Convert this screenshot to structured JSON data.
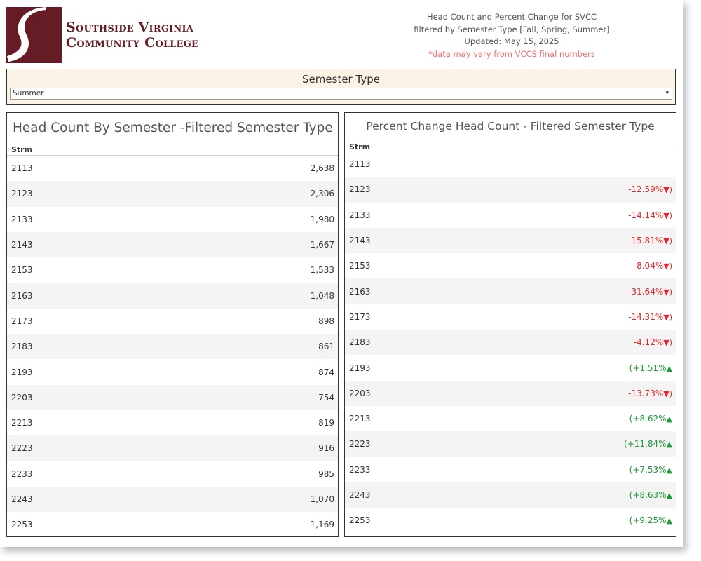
{
  "header": {
    "logo_line1": "Southside Virginia",
    "logo_line2": "Community College",
    "info_line1": "Head Count and Percent Change for SVCC",
    "info_line2": "filtered by Semester Type [Fall, Spring, Summer]",
    "updated": "Updated: May 15, 2025",
    "note": "*data may vary from VCCS final numbers"
  },
  "colors": {
    "brand": "#651c24",
    "negative": "#e8242a",
    "positive": "#1e9a3a",
    "filter_bg": "#fbf3e5"
  },
  "filter": {
    "title": "Semester Type",
    "selected": "Summer",
    "caret": "▾"
  },
  "headcount": {
    "title": "Head Count By Semester -Filtered Semester Type",
    "column_header": "Strm",
    "rows": [
      {
        "strm": "2113",
        "value": "2,638"
      },
      {
        "strm": "2123",
        "value": "2,306"
      },
      {
        "strm": "2133",
        "value": "1,980"
      },
      {
        "strm": "2143",
        "value": "1,667"
      },
      {
        "strm": "2153",
        "value": "1,533"
      },
      {
        "strm": "2163",
        "value": "1,048"
      },
      {
        "strm": "2173",
        "value": "898"
      },
      {
        "strm": "2183",
        "value": "861"
      },
      {
        "strm": "2193",
        "value": "874"
      },
      {
        "strm": "2203",
        "value": "754"
      },
      {
        "strm": "2213",
        "value": "819"
      },
      {
        "strm": "2223",
        "value": "916"
      },
      {
        "strm": "2233",
        "value": "985"
      },
      {
        "strm": "2243",
        "value": "1,070"
      },
      {
        "strm": "2253",
        "value": "1,169"
      }
    ]
  },
  "pctchange": {
    "title": "Percent Change Head Count - Filtered Semester Type",
    "column_header": "Strm",
    "rows": [
      {
        "strm": "2113",
        "value": "",
        "arrow": "",
        "dir": ""
      },
      {
        "strm": "2123",
        "value": "-12.59%",
        "arrow": "▼)",
        "dir": "neg"
      },
      {
        "strm": "2133",
        "value": "-14.14%",
        "arrow": "▼)",
        "dir": "neg"
      },
      {
        "strm": "2143",
        "value": "-15.81%",
        "arrow": "▼)",
        "dir": "neg"
      },
      {
        "strm": "2153",
        "value": "-8.04%",
        "arrow": "▼)",
        "dir": "neg"
      },
      {
        "strm": "2163",
        "value": "-31.64%",
        "arrow": "▼)",
        "dir": "neg"
      },
      {
        "strm": "2173",
        "value": "-14.31%",
        "arrow": "▼)",
        "dir": "neg"
      },
      {
        "strm": "2183",
        "value": "-4.12%",
        "arrow": "▼)",
        "dir": "neg"
      },
      {
        "strm": "2193",
        "value": "(+1.51%",
        "arrow": "▲",
        "dir": "pos"
      },
      {
        "strm": "2203",
        "value": "-13.73%",
        "arrow": "▼)",
        "dir": "neg"
      },
      {
        "strm": "2213",
        "value": "(+8.62%",
        "arrow": "▲",
        "dir": "pos"
      },
      {
        "strm": "2223",
        "value": "(+11.84%",
        "arrow": "▲",
        "dir": "pos"
      },
      {
        "strm": "2233",
        "value": "(+7.53%",
        "arrow": "▲",
        "dir": "pos"
      },
      {
        "strm": "2243",
        "value": "(+8.63%",
        "arrow": "▲",
        "dir": "pos"
      },
      {
        "strm": "2253",
        "value": "(+9.25%",
        "arrow": "▲",
        "dir": "pos"
      }
    ]
  }
}
